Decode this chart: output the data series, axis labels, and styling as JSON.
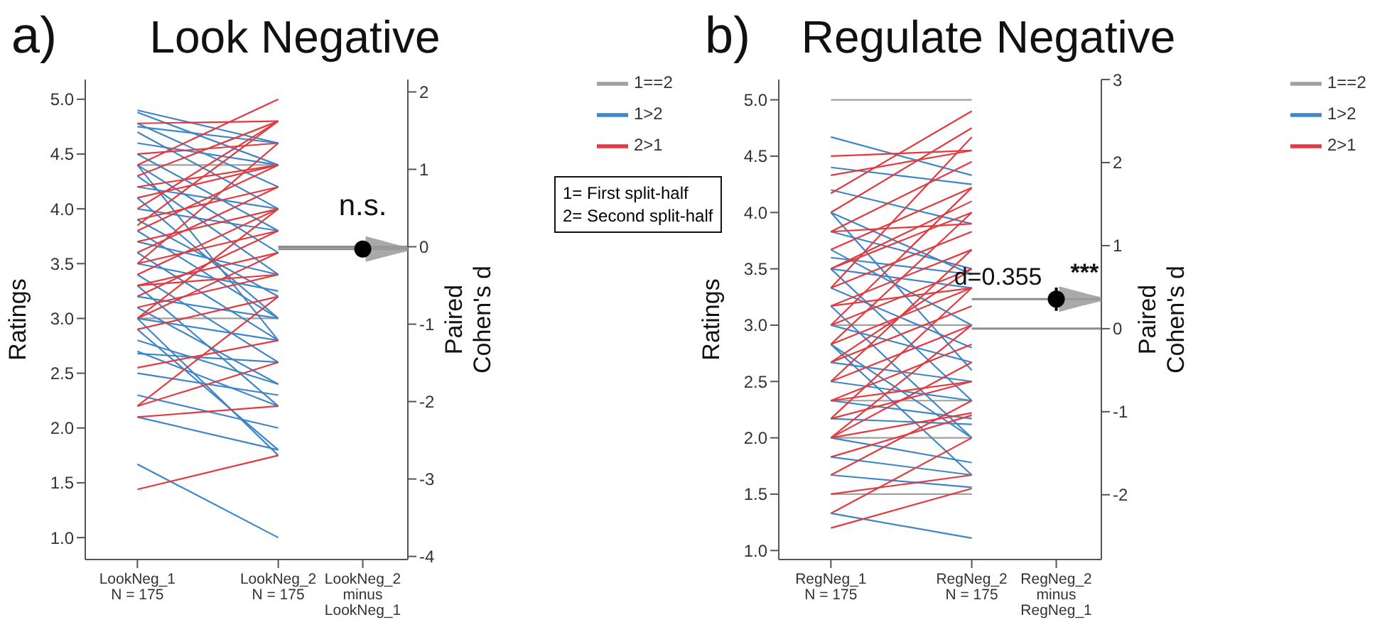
{
  "chart_data": [
    {
      "type": "line",
      "title": "Look Negative",
      "ylabel": "Ratings",
      "y2label": "Paired\nCohen's d",
      "categories": [
        "LookNeg_1\nN = 175",
        "LookNeg_2\nN = 175",
        "LookNeg_2\nminus\nLookNeg_1"
      ],
      "ylim": [
        0.8,
        5.18
      ],
      "yticks": [
        {
          "value": 1,
          "label": "1.0"
        },
        1.5,
        {
          "value": 2,
          "label": "2.0"
        },
        2.5,
        {
          "value": 3,
          "label": "3.0"
        },
        3.5,
        {
          "value": 4,
          "label": "4.0"
        },
        4.5,
        {
          "value": 5,
          "label": "5.0"
        }
      ],
      "y2lim": [
        -4.04,
        2.16
      ],
      "y2ticks": [
        -4,
        -3,
        -2,
        -1,
        0,
        1,
        2
      ],
      "legend": "top right",
      "marker": "none",
      "line_style": "solid",
      "annotations": [
        "a)",
        "n.s.",
        "1= First split-half\n2= Second split-half"
      ],
      "ref_lines": [
        {
          "axis": "y2",
          "value": 0,
          "color": "#8c8c8c"
        },
        {
          "axis": "y2",
          "value": -0.03,
          "color": "#8c8c8c"
        }
      ],
      "series": [
        {
          "type": "scatter",
          "axis": "y2",
          "marker": "circle",
          "color": "#000000",
          "values": [
            null,
            null,
            -0.03
          ],
          "errors": [
            null,
            null,
            0.1
          ]
        },
        {
          "name": "1==2",
          "color": "#a0a0a0",
          "values": [
            4.4,
            4.4,
            null
          ]
        },
        {
          "color": "#a0a0a0",
          "values": [
            3.0,
            3.0,
            null
          ]
        },
        {
          "name": "1>2",
          "color": "#3f86c6",
          "values": [
            4.9,
            4.6,
            null
          ]
        },
        {
          "color": "#3f86c6",
          "values": [
            4.88,
            4.4,
            null
          ]
        },
        {
          "color": "#3f86c6",
          "values": [
            4.78,
            4.2,
            null
          ]
        },
        {
          "color": "#3f86c6",
          "values": [
            4.75,
            4.6,
            null
          ]
        },
        {
          "color": "#3f86c6",
          "values": [
            4.7,
            4.0,
            null
          ]
        },
        {
          "color": "#3f86c6",
          "values": [
            4.6,
            4.4,
            null
          ]
        },
        {
          "color": "#3f86c6",
          "values": [
            4.5,
            3.8,
            null
          ]
        },
        {
          "color": "#3f86c6",
          "values": [
            4.4,
            3.6,
            null
          ]
        },
        {
          "color": "#3f86c6",
          "values": [
            4.4,
            2.8,
            null
          ]
        },
        {
          "color": "#3f86c6",
          "values": [
            4.3,
            3.4,
            null
          ]
        },
        {
          "color": "#3f86c6",
          "values": [
            4.2,
            4.0,
            null
          ]
        },
        {
          "color": "#3f86c6",
          "values": [
            4.1,
            3.0,
            null
          ]
        },
        {
          "color": "#3f86c6",
          "values": [
            4.0,
            3.8,
            null
          ]
        },
        {
          "color": "#3f86c6",
          "values": [
            3.9,
            3.2,
            null
          ]
        },
        {
          "color": "#3f86c6",
          "values": [
            3.8,
            3.0,
            null
          ]
        },
        {
          "color": "#3f86c6",
          "values": [
            3.7,
            3.4,
            null
          ]
        },
        {
          "color": "#3f86c6",
          "values": [
            3.6,
            2.8,
            null
          ]
        },
        {
          "color": "#3f86c6",
          "values": [
            3.5,
            3.25,
            null
          ]
        },
        {
          "color": "#3f86c6",
          "values": [
            3.4,
            2.6,
            null
          ]
        },
        {
          "color": "#3f86c6",
          "values": [
            3.3,
            2.2,
            null
          ]
        },
        {
          "color": "#3f86c6",
          "values": [
            3.2,
            3.0,
            null
          ]
        },
        {
          "color": "#3f86c6",
          "values": [
            3.1,
            2.4,
            null
          ]
        },
        {
          "color": "#3f86c6",
          "values": [
            3.0,
            2.8,
            null
          ]
        },
        {
          "color": "#3f86c6",
          "values": [
            3.0,
            1.75,
            null
          ]
        },
        {
          "color": "#3f86c6",
          "values": [
            2.9,
            1.8,
            null
          ]
        },
        {
          "color": "#3f86c6",
          "values": [
            2.8,
            2.4,
            null
          ]
        },
        {
          "color": "#3f86c6",
          "values": [
            2.7,
            2.2,
            null
          ]
        },
        {
          "color": "#3f86c6",
          "values": [
            2.68,
            2.6,
            null
          ]
        },
        {
          "color": "#3f86c6",
          "values": [
            2.5,
            2.3,
            null
          ]
        },
        {
          "color": "#3f86c6",
          "values": [
            2.3,
            2.0,
            null
          ]
        },
        {
          "color": "#3f86c6",
          "values": [
            2.1,
            1.8,
            null
          ]
        },
        {
          "color": "#3f86c6",
          "values": [
            1.67,
            1.0,
            null
          ]
        },
        {
          "name": "2>1",
          "color": "#e3393f",
          "values": [
            4.78,
            4.8,
            null
          ]
        },
        {
          "color": "#e3393f",
          "values": [
            4.4,
            5.0,
            null
          ]
        },
        {
          "color": "#e3393f",
          "values": [
            4.3,
            4.8,
            null
          ]
        },
        {
          "color": "#e3393f",
          "values": [
            4.5,
            4.6,
            null
          ]
        },
        {
          "color": "#e3393f",
          "values": [
            4.2,
            4.4,
            null
          ]
        },
        {
          "color": "#e3393f",
          "values": [
            4.1,
            4.4,
            null
          ]
        },
        {
          "color": "#e3393f",
          "values": [
            4.0,
            4.8,
            null
          ]
        },
        {
          "color": "#e3393f",
          "values": [
            3.9,
            4.2,
            null
          ]
        },
        {
          "color": "#e3393f",
          "values": [
            3.85,
            4.8,
            null
          ]
        },
        {
          "color": "#e3393f",
          "values": [
            3.8,
            4.4,
            null
          ]
        },
        {
          "color": "#e3393f",
          "values": [
            3.7,
            4.0,
            null
          ]
        },
        {
          "color": "#e3393f",
          "values": [
            3.6,
            4.2,
            null
          ]
        },
        {
          "color": "#e3393f",
          "values": [
            3.5,
            3.8,
            null
          ]
        },
        {
          "color": "#e3393f",
          "values": [
            3.5,
            4.6,
            null
          ]
        },
        {
          "color": "#e3393f",
          "values": [
            3.4,
            4.0,
            null
          ]
        },
        {
          "color": "#e3393f",
          "values": [
            3.3,
            3.6,
            null
          ]
        },
        {
          "color": "#e3393f",
          "values": [
            3.3,
            3.4,
            null
          ]
        },
        {
          "color": "#e3393f",
          "values": [
            3.2,
            3.8,
            null
          ]
        },
        {
          "color": "#e3393f",
          "values": [
            3.1,
            3.4,
            null
          ]
        },
        {
          "color": "#e3393f",
          "values": [
            3.0,
            3.6,
            null
          ]
        },
        {
          "color": "#e3393f",
          "values": [
            3.0,
            4.0,
            null
          ]
        },
        {
          "color": "#e3393f",
          "values": [
            2.9,
            3.2,
            null
          ]
        },
        {
          "color": "#e3393f",
          "values": [
            2.55,
            2.8,
            null
          ]
        },
        {
          "color": "#e3393f",
          "values": [
            2.2,
            2.6,
            null
          ]
        },
        {
          "color": "#e3393f",
          "values": [
            2.2,
            3.2,
            null
          ]
        },
        {
          "color": "#e3393f",
          "values": [
            2.1,
            2.2,
            null
          ]
        },
        {
          "color": "#e3393f",
          "values": [
            1.44,
            1.75,
            null
          ]
        }
      ]
    },
    {
      "type": "line",
      "title": "Regulate Negative",
      "ylabel": "Ratings",
      "y2label": "Paired\nCohen's d",
      "categories": [
        "RegNeg_1\nN = 175",
        "RegNeg_2\nN = 175",
        "RegNeg_2\nminus\nRegNeg_1"
      ],
      "ylim": [
        0.92,
        5.18
      ],
      "yticks": [
        {
          "value": 1,
          "label": "1.0"
        },
        1.5,
        {
          "value": 2,
          "label": "2.0"
        },
        2.5,
        {
          "value": 3,
          "label": "3.0"
        },
        3.5,
        {
          "value": 4,
          "label": "4.0"
        },
        4.5,
        {
          "value": 5,
          "label": "5.0"
        }
      ],
      "y2lim": [
        -2.78,
        3
      ],
      "y2ticks": [
        -2,
        -1,
        0,
        1,
        2,
        3
      ],
      "legend": "top right",
      "marker": "none",
      "line_style": "solid",
      "annotations": [
        "b)",
        "d=0.355",
        "***"
      ],
      "ref_lines": [
        {
          "axis": "y2",
          "value": 0,
          "color": "#8c8c8c"
        },
        {
          "axis": "y2",
          "value": 0.355,
          "color": "#8c8c8c"
        }
      ],
      "series": [
        {
          "type": "scatter",
          "axis": "y2",
          "marker": "circle",
          "color": "#000000",
          "values": [
            null,
            null,
            0.355
          ],
          "errors": [
            null,
            null,
            0.14
          ]
        },
        {
          "name": "1==2",
          "color": "#a0a0a0",
          "values": [
            5.0,
            5.0,
            null
          ]
        },
        {
          "color": "#a0a0a0",
          "values": [
            3.0,
            3.0,
            null
          ]
        },
        {
          "color": "#a0a0a0",
          "values": [
            2.33,
            2.33,
            null
          ]
        },
        {
          "color": "#a0a0a0",
          "values": [
            2.0,
            2.0,
            null
          ]
        },
        {
          "color": "#a0a0a0",
          "values": [
            1.5,
            1.5,
            null
          ]
        },
        {
          "name": "1>2",
          "color": "#3f86c6",
          "values": [
            4.67,
            4.33,
            null
          ]
        },
        {
          "color": "#3f86c6",
          "values": [
            4.4,
            4.25,
            null
          ]
        },
        {
          "color": "#3f86c6",
          "values": [
            4.2,
            3.9,
            null
          ]
        },
        {
          "color": "#3f86c6",
          "values": [
            4.0,
            3.45,
            null
          ]
        },
        {
          "color": "#3f86c6",
          "values": [
            4.0,
            2.6,
            null
          ]
        },
        {
          "color": "#3f86c6",
          "values": [
            3.83,
            3.5,
            null
          ]
        },
        {
          "color": "#3f86c6",
          "values": [
            3.67,
            3.0,
            null
          ]
        },
        {
          "color": "#3f86c6",
          "values": [
            3.6,
            3.45,
            null
          ]
        },
        {
          "color": "#3f86c6",
          "values": [
            3.5,
            3.33,
            null
          ]
        },
        {
          "color": "#3f86c6",
          "values": [
            3.5,
            2.33,
            null
          ]
        },
        {
          "color": "#3f86c6",
          "values": [
            3.33,
            2.8,
            null
          ]
        },
        {
          "color": "#3f86c6",
          "values": [
            3.17,
            2.0,
            null
          ]
        },
        {
          "color": "#3f86c6",
          "values": [
            3.0,
            2.67,
            null
          ]
        },
        {
          "color": "#3f86c6",
          "values": [
            2.83,
            2.0,
            null
          ]
        },
        {
          "color": "#3f86c6",
          "values": [
            2.83,
            1.67,
            null
          ]
        },
        {
          "color": "#3f86c6",
          "values": [
            2.67,
            2.5,
            null
          ]
        },
        {
          "color": "#3f86c6",
          "values": [
            2.5,
            2.33,
            null
          ]
        },
        {
          "color": "#3f86c6",
          "values": [
            2.33,
            2.17,
            null
          ]
        },
        {
          "color": "#3f86c6",
          "values": [
            2.17,
            2.12,
            null
          ]
        },
        {
          "color": "#3f86c6",
          "values": [
            2.0,
            1.78,
            null
          ]
        },
        {
          "color": "#3f86c6",
          "values": [
            1.83,
            1.67,
            null
          ]
        },
        {
          "color": "#3f86c6",
          "values": [
            1.67,
            1.56,
            null
          ]
        },
        {
          "color": "#3f86c6",
          "values": [
            1.33,
            1.11,
            null
          ]
        },
        {
          "name": "2>1",
          "color": "#e3393f",
          "values": [
            1.2,
            1.55,
            null
          ]
        },
        {
          "color": "#e3393f",
          "values": [
            1.33,
            2.0,
            null
          ]
        },
        {
          "color": "#e3393f",
          "values": [
            1.5,
            1.67,
            null
          ]
        },
        {
          "color": "#e3393f",
          "values": [
            1.67,
            2.33,
            null
          ]
        },
        {
          "color": "#e3393f",
          "values": [
            1.83,
            2.2,
            null
          ]
        },
        {
          "color": "#e3393f",
          "values": [
            2.0,
            2.22,
            null
          ]
        },
        {
          "color": "#e3393f",
          "values": [
            2.0,
            2.67,
            null
          ]
        },
        {
          "color": "#e3393f",
          "values": [
            2.0,
            3.0,
            null
          ]
        },
        {
          "color": "#e3393f",
          "values": [
            2.17,
            2.5,
            null
          ]
        },
        {
          "color": "#e3393f",
          "values": [
            2.17,
            3.33,
            null
          ]
        },
        {
          "color": "#e3393f",
          "values": [
            2.33,
            2.5,
            null
          ]
        },
        {
          "color": "#e3393f",
          "values": [
            2.33,
            2.83,
            null
          ]
        },
        {
          "color": "#e3393f",
          "values": [
            2.5,
            3.0,
            null
          ]
        },
        {
          "color": "#e3393f",
          "values": [
            2.5,
            3.67,
            null
          ]
        },
        {
          "color": "#e3393f",
          "values": [
            2.67,
            3.17,
            null
          ]
        },
        {
          "color": "#e3393f",
          "values": [
            2.67,
            3.5,
            null
          ]
        },
        {
          "color": "#e3393f",
          "values": [
            2.83,
            3.33,
            null
          ]
        },
        {
          "color": "#e3393f",
          "values": [
            2.83,
            4.0,
            null
          ]
        },
        {
          "color": "#e3393f",
          "values": [
            3.0,
            3.5,
            null
          ]
        },
        {
          "color": "#e3393f",
          "values": [
            3.0,
            4.22,
            null
          ]
        },
        {
          "color": "#e3393f",
          "values": [
            3.17,
            3.33,
            null
          ]
        },
        {
          "color": "#e3393f",
          "values": [
            3.17,
            3.67,
            null
          ]
        },
        {
          "color": "#e3393f",
          "values": [
            3.33,
            3.83,
            null
          ]
        },
        {
          "color": "#e3393f",
          "values": [
            3.33,
            4.67,
            null
          ]
        },
        {
          "color": "#e3393f",
          "values": [
            3.5,
            4.0,
            null
          ]
        },
        {
          "color": "#e3393f",
          "values": [
            3.5,
            4.1,
            null
          ]
        },
        {
          "color": "#e3393f",
          "values": [
            3.67,
            4.22,
            null
          ]
        },
        {
          "color": "#e3393f",
          "values": [
            3.83,
            3.9,
            null
          ]
        },
        {
          "color": "#e3393f",
          "values": [
            3.83,
            4.45,
            null
          ]
        },
        {
          "color": "#e3393f",
          "values": [
            4.0,
            4.75,
            null
          ]
        },
        {
          "color": "#e3393f",
          "values": [
            4.17,
            4.9,
            null
          ]
        },
        {
          "color": "#e3393f",
          "values": [
            4.33,
            4.55,
            null
          ]
        },
        {
          "color": "#e3393f",
          "values": [
            4.5,
            4.55,
            null
          ]
        }
      ]
    }
  ]
}
